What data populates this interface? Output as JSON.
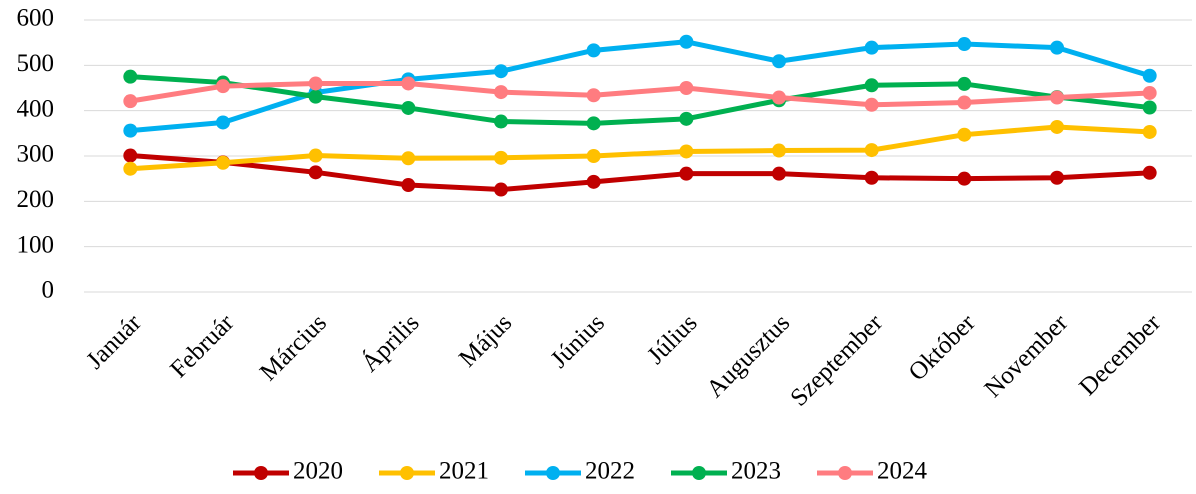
{
  "chart_data": {
    "type": "line",
    "categories": [
      "Január",
      "Február",
      "Március",
      "Április",
      "Május",
      "Június",
      "Július",
      "Augusztus",
      "Szeptember",
      "Október",
      "November",
      "December"
    ],
    "series": [
      {
        "name": "2020",
        "color": "#c00000",
        "values": [
          301,
          286,
          264,
          236,
          226,
          243,
          261,
          261,
          252,
          250,
          252,
          263
        ]
      },
      {
        "name": "2021",
        "color": "#ffc000",
        "values": [
          272,
          285,
          301,
          295,
          296,
          300,
          310,
          312,
          313,
          347,
          364,
          353
        ]
      },
      {
        "name": "2022",
        "color": "#00b0f0",
        "values": [
          356,
          374,
          440,
          469,
          487,
          533,
          552,
          509,
          539,
          547,
          539,
          477
        ]
      },
      {
        "name": "2023",
        "color": "#00b050",
        "values": [
          475,
          462,
          431,
          406,
          376,
          372,
          382,
          423,
          456,
          459,
          430,
          407
        ]
      },
      {
        "name": "2024",
        "color": "#ff7c80",
        "values": [
          421,
          454,
          460,
          460,
          441,
          434,
          450,
          429,
          413,
          418,
          429,
          439
        ]
      }
    ],
    "ylim": [
      0,
      600
    ],
    "yticks": [
      0,
      100,
      200,
      300,
      400,
      500,
      600
    ],
    "grid": true,
    "legend": "bottom"
  }
}
